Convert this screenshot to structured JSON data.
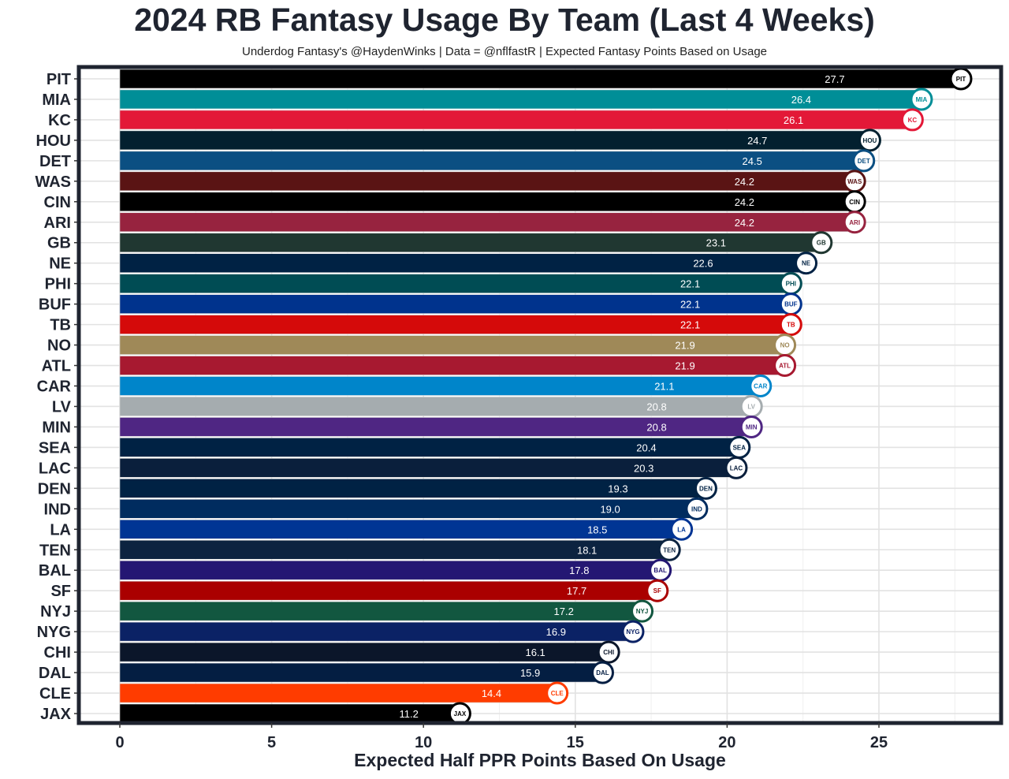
{
  "chart_data": {
    "type": "bar",
    "orientation": "horizontal",
    "title": "2024 RB Fantasy Usage By Team (Last 4 Weeks)",
    "subtitle": "Underdog Fantasy's @HaydenWinks | Data = @nflfastR | Expected Fantasy Points Based on Usage",
    "xlabel": "Expected Half PPR Points Based On Usage",
    "ylabel": "",
    "xlim": [
      -1.3,
      28.9
    ],
    "xticks": [
      0,
      5,
      10,
      15,
      20,
      25
    ],
    "grid": true,
    "categories": [
      "PIT",
      "MIA",
      "KC",
      "HOU",
      "DET",
      "WAS",
      "CIN",
      "ARI",
      "GB",
      "NE",
      "PHI",
      "BUF",
      "TB",
      "NO",
      "ATL",
      "CAR",
      "LV",
      "MIN",
      "SEA",
      "LAC",
      "DEN",
      "IND",
      "LA",
      "TEN",
      "BAL",
      "SF",
      "NYJ",
      "NYG",
      "CHI",
      "DAL",
      "CLE",
      "JAX"
    ],
    "values": [
      27.7,
      26.4,
      26.1,
      24.7,
      24.5,
      24.2,
      24.2,
      24.2,
      23.1,
      22.6,
      22.1,
      22.1,
      22.1,
      21.9,
      21.9,
      21.1,
      20.8,
      20.8,
      20.4,
      20.3,
      19.3,
      19.0,
      18.5,
      18.1,
      17.8,
      17.7,
      17.2,
      16.9,
      16.1,
      15.9,
      14.4,
      11.2
    ],
    "value_labels": [
      "27.7",
      "26.4",
      "26.1",
      "24.7",
      "24.5",
      "24.2",
      "24.2",
      "24.2",
      "23.1",
      "22.6",
      "22.1",
      "22.1",
      "22.1",
      "21.9",
      "21.9",
      "21.1",
      "20.8",
      "20.8",
      "20.4",
      "20.3",
      "19.3",
      "19.0",
      "18.5",
      "18.1",
      "17.8",
      "17.7",
      "17.2",
      "16.9",
      "16.1",
      "15.9",
      "14.4",
      "11.2"
    ],
    "colors": [
      "#000000",
      "#008e97",
      "#e31837",
      "#03202f",
      "#0b4f82",
      "#5a1414",
      "#000000",
      "#97233f",
      "#203731",
      "#002244",
      "#004c54",
      "#00338d",
      "#d50a0a",
      "#9f8958",
      "#a71930",
      "#0085ca",
      "#a5acaf",
      "#4f2683",
      "#002244",
      "#0a1f3c",
      "#002244",
      "#002c5f",
      "#003594",
      "#0c2340",
      "#241773",
      "#aa0000",
      "#125740",
      "#0b2265",
      "#0b162a",
      "#041e42",
      "#ff3c00",
      "#000000"
    ]
  }
}
